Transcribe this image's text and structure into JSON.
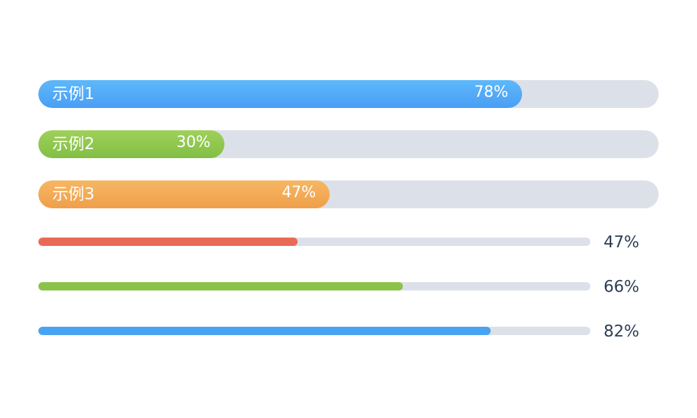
{
  "labeled_bars": [
    {
      "label": "示例1",
      "percent_text": "78%",
      "value": 78,
      "color_start": "#5db8fb",
      "color_end": "#4a9ef4"
    },
    {
      "label": "示例2",
      "percent_text": "30%",
      "value": 30,
      "color_start": "#9fd05a",
      "color_end": "#82bf45"
    },
    {
      "label": "示例3",
      "percent_text": "47%",
      "value": 47,
      "color_start": "#f6b763",
      "color_end": "#f09f4a"
    }
  ],
  "thin_bars": [
    {
      "percent_text": "47%",
      "value": 47,
      "color": "#e86a56"
    },
    {
      "percent_text": "66%",
      "value": 66,
      "color": "#8bc34a"
    },
    {
      "percent_text": "82%",
      "value": 82,
      "color": "#4aa3f2"
    }
  ]
}
